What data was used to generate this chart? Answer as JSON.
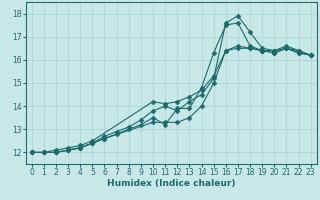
{
  "xlabel": "Humidex (Indice chaleur)",
  "bg_color": "#c8e8e8",
  "line_color": "#1a6b6b",
  "grid_color": "#add4d4",
  "xlim": [
    -0.5,
    23.5
  ],
  "ylim": [
    11.5,
    18.5
  ],
  "xticks": [
    0,
    1,
    2,
    3,
    4,
    5,
    6,
    7,
    8,
    9,
    10,
    11,
    12,
    13,
    14,
    15,
    16,
    17,
    18,
    19,
    20,
    21,
    22,
    23
  ],
  "yticks": [
    12,
    13,
    14,
    15,
    16,
    17,
    18
  ],
  "series": [
    {
      "x": [
        0,
        1,
        2,
        3,
        4,
        5,
        6,
        10,
        11,
        12,
        13,
        14,
        15,
        16,
        17,
        18,
        19,
        20,
        21,
        22,
        23
      ],
      "y": [
        12.0,
        12.0,
        12.0,
        12.1,
        12.2,
        12.4,
        12.6,
        13.3,
        13.3,
        13.3,
        13.5,
        14.0,
        15.0,
        16.4,
        16.5,
        16.5,
        16.4,
        16.3,
        16.5,
        16.3,
        16.2
      ],
      "marker": "D",
      "markersize": 2.5
    },
    {
      "x": [
        0,
        1,
        2,
        3,
        4,
        5,
        6,
        7,
        8,
        9,
        10,
        11,
        12,
        13,
        14,
        15,
        16,
        17,
        18,
        19,
        20,
        21,
        22,
        23
      ],
      "y": [
        12.0,
        12.0,
        12.0,
        12.1,
        12.2,
        12.4,
        12.6,
        12.8,
        13.0,
        13.2,
        13.5,
        13.2,
        13.9,
        13.9,
        14.8,
        16.3,
        17.5,
        17.6,
        16.6,
        16.4,
        16.3,
        16.5,
        16.3,
        16.2
      ],
      "marker": "D",
      "markersize": 2.5
    },
    {
      "x": [
        0,
        1,
        2,
        3,
        4,
        5,
        6,
        7,
        8,
        9,
        10,
        11,
        12,
        13,
        14,
        15,
        16,
        17,
        18,
        19,
        20,
        21,
        22,
        23
      ],
      "y": [
        12.0,
        12.0,
        12.0,
        12.1,
        12.2,
        12.4,
        12.7,
        12.9,
        13.1,
        13.4,
        13.8,
        14.0,
        13.8,
        14.2,
        14.5,
        15.2,
        17.6,
        17.9,
        17.2,
        16.5,
        16.4,
        16.5,
        16.4,
        16.2
      ],
      "marker": "D",
      "markersize": 2.5
    },
    {
      "x": [
        0,
        1,
        2,
        3,
        4,
        5,
        10,
        11,
        12,
        13,
        14,
        15,
        16,
        17,
        18,
        19,
        20,
        21,
        22,
        23
      ],
      "y": [
        12.0,
        12.0,
        12.1,
        12.2,
        12.3,
        12.5,
        14.2,
        14.1,
        14.2,
        14.4,
        14.7,
        15.3,
        16.4,
        16.6,
        16.5,
        16.4,
        16.4,
        16.6,
        16.4,
        16.2
      ],
      "marker": "D",
      "markersize": 2.5
    }
  ],
  "tick_fontsize": 5.5,
  "label_fontsize": 6.5
}
